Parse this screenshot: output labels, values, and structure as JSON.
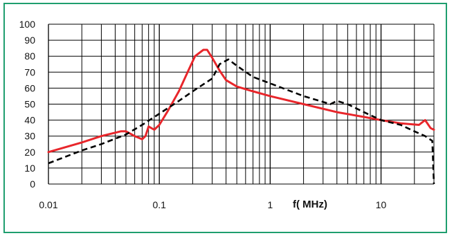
{
  "colors": {
    "frame": "#1e9e6e",
    "grid": "#000000",
    "series_solid": "#e8262b",
    "series_dashed": "#000000"
  },
  "chart_data": {
    "type": "line",
    "xscale": "log",
    "xlim": [
      0.01,
      30
    ],
    "ylim": [
      0,
      100
    ],
    "grid": true,
    "xlabel": "f( MHz)",
    "ylabel": "",
    "x_tick_labels": [
      "0.01",
      "0.1",
      "1",
      "10"
    ],
    "y_tick_labels": [
      "100",
      "90",
      "80",
      "70",
      "60",
      "50",
      "40",
      "30",
      "20",
      "10",
      "0"
    ],
    "series": [
      {
        "style": "solid",
        "color": "#e8262b",
        "points": [
          [
            0.01,
            20
          ],
          [
            0.02,
            26
          ],
          [
            0.03,
            30
          ],
          [
            0.045,
            33
          ],
          [
            0.05,
            33
          ],
          [
            0.06,
            30
          ],
          [
            0.07,
            28
          ],
          [
            0.075,
            30
          ],
          [
            0.08,
            36
          ],
          [
            0.09,
            34
          ],
          [
            0.1,
            37
          ],
          [
            0.12,
            46
          ],
          [
            0.15,
            58
          ],
          [
            0.18,
            70
          ],
          [
            0.21,
            80
          ],
          [
            0.25,
            84
          ],
          [
            0.27,
            84
          ],
          [
            0.3,
            79
          ],
          [
            0.35,
            71
          ],
          [
            0.4,
            65
          ],
          [
            0.5,
            61
          ],
          [
            0.7,
            58
          ],
          [
            1,
            55
          ],
          [
            2,
            50
          ],
          [
            4,
            45
          ],
          [
            7,
            42
          ],
          [
            10,
            40
          ],
          [
            15,
            38
          ],
          [
            22,
            37
          ],
          [
            25,
            40
          ],
          [
            28,
            35
          ],
          [
            30,
            34
          ]
        ]
      },
      {
        "style": "dashed",
        "color": "#000000",
        "points": [
          [
            0.01,
            13
          ],
          [
            0.02,
            21
          ],
          [
            0.03,
            25
          ],
          [
            0.05,
            31
          ],
          [
            0.07,
            37
          ],
          [
            0.1,
            44
          ],
          [
            0.15,
            52
          ],
          [
            0.2,
            58
          ],
          [
            0.3,
            66
          ],
          [
            0.35,
            75
          ],
          [
            0.42,
            78
          ],
          [
            0.5,
            74
          ],
          [
            0.7,
            67
          ],
          [
            1,
            63
          ],
          [
            2,
            55
          ],
          [
            3.5,
            50
          ],
          [
            4,
            52
          ],
          [
            5,
            50
          ],
          [
            7,
            45
          ],
          [
            10,
            40
          ],
          [
            15,
            37
          ],
          [
            20,
            33
          ],
          [
            25,
            30
          ],
          [
            29,
            27
          ],
          [
            30,
            0
          ]
        ]
      }
    ]
  }
}
